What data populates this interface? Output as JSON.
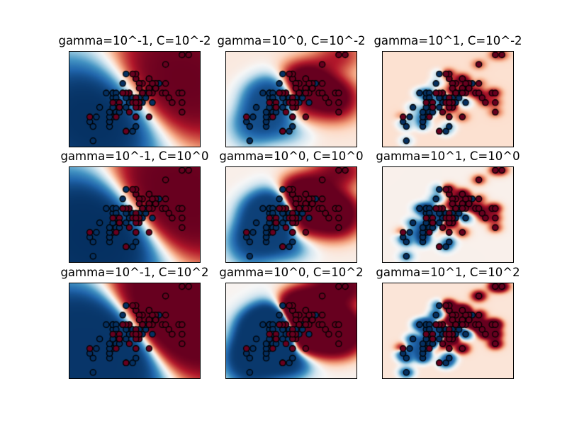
{
  "figure": {
    "background": "#ffffff",
    "kind": "matplotlib-style 3x3 grid of SVM RBF decision surfaces with scatter points"
  },
  "chart_data": {
    "type": "scatter",
    "subtype": "decision-surface-grid",
    "title": "",
    "grid_shape": {
      "rows": 3,
      "cols": 3
    },
    "axes": {
      "x_range": [
        -3,
        3
      ],
      "y_range": [
        -3,
        3
      ],
      "ticks": "none",
      "grid": false,
      "legend": "none"
    },
    "subplots": [
      {
        "row": 0,
        "col": 0,
        "gamma": 0.1,
        "C": 0.01,
        "title": "gamma=10^-1, C=10^-2"
      },
      {
        "row": 0,
        "col": 1,
        "gamma": 1,
        "C": 0.01,
        "title": "gamma=10^0, C=10^-2"
      },
      {
        "row": 0,
        "col": 2,
        "gamma": 10,
        "C": 0.01,
        "title": "gamma=10^1, C=10^-2"
      },
      {
        "row": 1,
        "col": 0,
        "gamma": 0.1,
        "C": 1,
        "title": "gamma=10^-1, C=10^0"
      },
      {
        "row": 1,
        "col": 1,
        "gamma": 1,
        "C": 1,
        "title": "gamma=10^0, C=10^0"
      },
      {
        "row": 1,
        "col": 2,
        "gamma": 10,
        "C": 1,
        "title": "gamma=10^1, C=10^0"
      },
      {
        "row": 2,
        "col": 0,
        "gamma": 0.1,
        "C": 100,
        "title": "gamma=10^-1, C=10^2"
      },
      {
        "row": 2,
        "col": 1,
        "gamma": 1,
        "C": 100,
        "title": "gamma=10^0, C=10^2"
      },
      {
        "row": 2,
        "col": 2,
        "gamma": 10,
        "C": 100,
        "title": "gamma=10^1, C=10^2"
      }
    ],
    "points": {
      "note": "same scatter in every subplot; coordinates are standardized (z-scores) of the raw values below, plotted over [-3,3]x[-3,3]",
      "x": [
        7.0,
        6.4,
        6.9,
        5.5,
        6.5,
        5.7,
        6.3,
        4.9,
        6.6,
        5.2,
        5.0,
        5.9,
        6.0,
        6.1,
        5.6,
        6.7,
        5.6,
        5.8,
        6.2,
        5.6,
        5.9,
        6.1,
        6.3,
        6.1,
        6.4,
        6.6,
        6.8,
        6.7,
        6.0,
        5.7,
        5.5,
        5.5,
        5.8,
        6.0,
        5.4,
        6.0,
        6.7,
        6.3,
        5.6,
        5.5,
        5.5,
        6.1,
        5.8,
        5.0,
        5.6,
        5.7,
        5.7,
        6.2,
        5.1,
        5.7,
        6.3,
        5.8,
        7.1,
        6.3,
        6.5,
        7.6,
        4.9,
        7.3,
        6.7,
        7.2,
        6.5,
        6.4,
        6.8,
        5.7,
        5.8,
        6.4,
        6.5,
        7.7,
        7.7,
        6.0,
        6.9,
        5.6,
        7.7,
        6.3,
        6.7,
        7.2,
        6.2,
        6.1,
        6.4,
        7.2,
        7.4,
        7.9,
        6.4,
        6.3,
        6.1,
        7.7,
        6.3,
        6.4,
        6.0,
        6.9,
        6.7,
        6.9,
        5.8,
        6.8,
        6.7,
        6.7,
        6.3,
        6.5,
        6.2,
        5.9
      ],
      "y": [
        3.2,
        3.2,
        3.1,
        2.3,
        2.8,
        2.8,
        3.3,
        2.4,
        2.9,
        2.7,
        2.0,
        3.0,
        2.2,
        2.9,
        2.9,
        3.1,
        3.0,
        2.7,
        2.2,
        2.5,
        3.2,
        2.8,
        2.5,
        2.8,
        2.9,
        3.0,
        2.8,
        3.0,
        2.9,
        2.6,
        2.4,
        2.4,
        2.7,
        2.7,
        3.0,
        3.4,
        3.1,
        2.3,
        3.0,
        2.5,
        2.6,
        3.0,
        2.6,
        2.3,
        2.7,
        3.0,
        2.9,
        2.9,
        2.5,
        2.8,
        3.3,
        2.7,
        3.0,
        2.9,
        3.0,
        3.0,
        2.5,
        2.9,
        2.5,
        3.6,
        3.2,
        2.7,
        3.0,
        2.5,
        2.8,
        3.2,
        3.0,
        3.8,
        2.6,
        2.2,
        3.2,
        2.8,
        2.8,
        2.7,
        3.3,
        3.2,
        2.8,
        3.0,
        2.8,
        3.0,
        2.8,
        3.8,
        2.8,
        2.8,
        2.6,
        3.0,
        3.4,
        3.1,
        3.0,
        3.1,
        3.1,
        3.1,
        2.7,
        3.2,
        3.3,
        3.0,
        2.5,
        3.0,
        3.4,
        3.0
      ],
      "label": [
        0,
        0,
        0,
        0,
        0,
        0,
        0,
        0,
        0,
        0,
        0,
        0,
        0,
        0,
        0,
        0,
        0,
        0,
        0,
        0,
        0,
        0,
        0,
        0,
        0,
        0,
        0,
        0,
        0,
        0,
        0,
        0,
        0,
        0,
        0,
        0,
        0,
        0,
        0,
        0,
        0,
        0,
        0,
        0,
        0,
        0,
        0,
        0,
        0,
        0,
        1,
        1,
        1,
        1,
        1,
        1,
        1,
        1,
        1,
        1,
        1,
        1,
        1,
        1,
        1,
        1,
        1,
        1,
        1,
        1,
        1,
        1,
        1,
        1,
        1,
        1,
        1,
        1,
        1,
        1,
        1,
        1,
        1,
        1,
        1,
        1,
        1,
        1,
        1,
        1,
        1,
        1,
        1,
        1,
        1,
        1,
        1,
        1,
        1,
        1
      ]
    },
    "colors": {
      "point_class0_fill": "#053061",
      "point_class1_fill": "#67001f",
      "point_edge": "#000000",
      "colormap": "RdBu",
      "colormap_anchors": [
        "#67001f",
        "#b2182b",
        "#d6604d",
        "#f4a582",
        "#fddbc7",
        "#f7f7f7",
        "#d1e5f0",
        "#92c5de",
        "#4393c3",
        "#2166ac",
        "#053061"
      ],
      "surface_positive_region": "red (class 1)",
      "surface_negative_region": "blue (class 0)"
    }
  }
}
